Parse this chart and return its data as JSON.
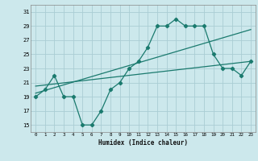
{
  "xlabel": "Humidex (Indice chaleur)",
  "bg_color": "#cce8ec",
  "grid_color": "#aacdd4",
  "line_color": "#1a7a6e",
  "xlim": [
    -0.5,
    23.5
  ],
  "ylim": [
    14,
    32
  ],
  "xticks": [
    0,
    1,
    2,
    3,
    4,
    5,
    6,
    7,
    8,
    9,
    10,
    11,
    12,
    13,
    14,
    15,
    16,
    17,
    18,
    19,
    20,
    21,
    22,
    23
  ],
  "yticks": [
    15,
    17,
    19,
    21,
    23,
    25,
    27,
    29,
    31
  ],
  "main_x": [
    0,
    1,
    2,
    3,
    4,
    5,
    6,
    7,
    8,
    9,
    10,
    11,
    12,
    13,
    14,
    15,
    16,
    17,
    18,
    19,
    20,
    21,
    22,
    23
  ],
  "main_y": [
    19,
    20,
    22,
    19,
    19,
    15,
    15,
    17,
    20,
    21,
    23,
    24,
    26,
    29,
    29,
    30,
    29,
    29,
    29,
    25,
    23,
    23,
    22,
    24
  ],
  "line1_x": [
    0,
    23
  ],
  "line1_y": [
    19.5,
    28.5
  ],
  "line2_x": [
    0,
    23
  ],
  "line2_y": [
    20.5,
    24.0
  ]
}
